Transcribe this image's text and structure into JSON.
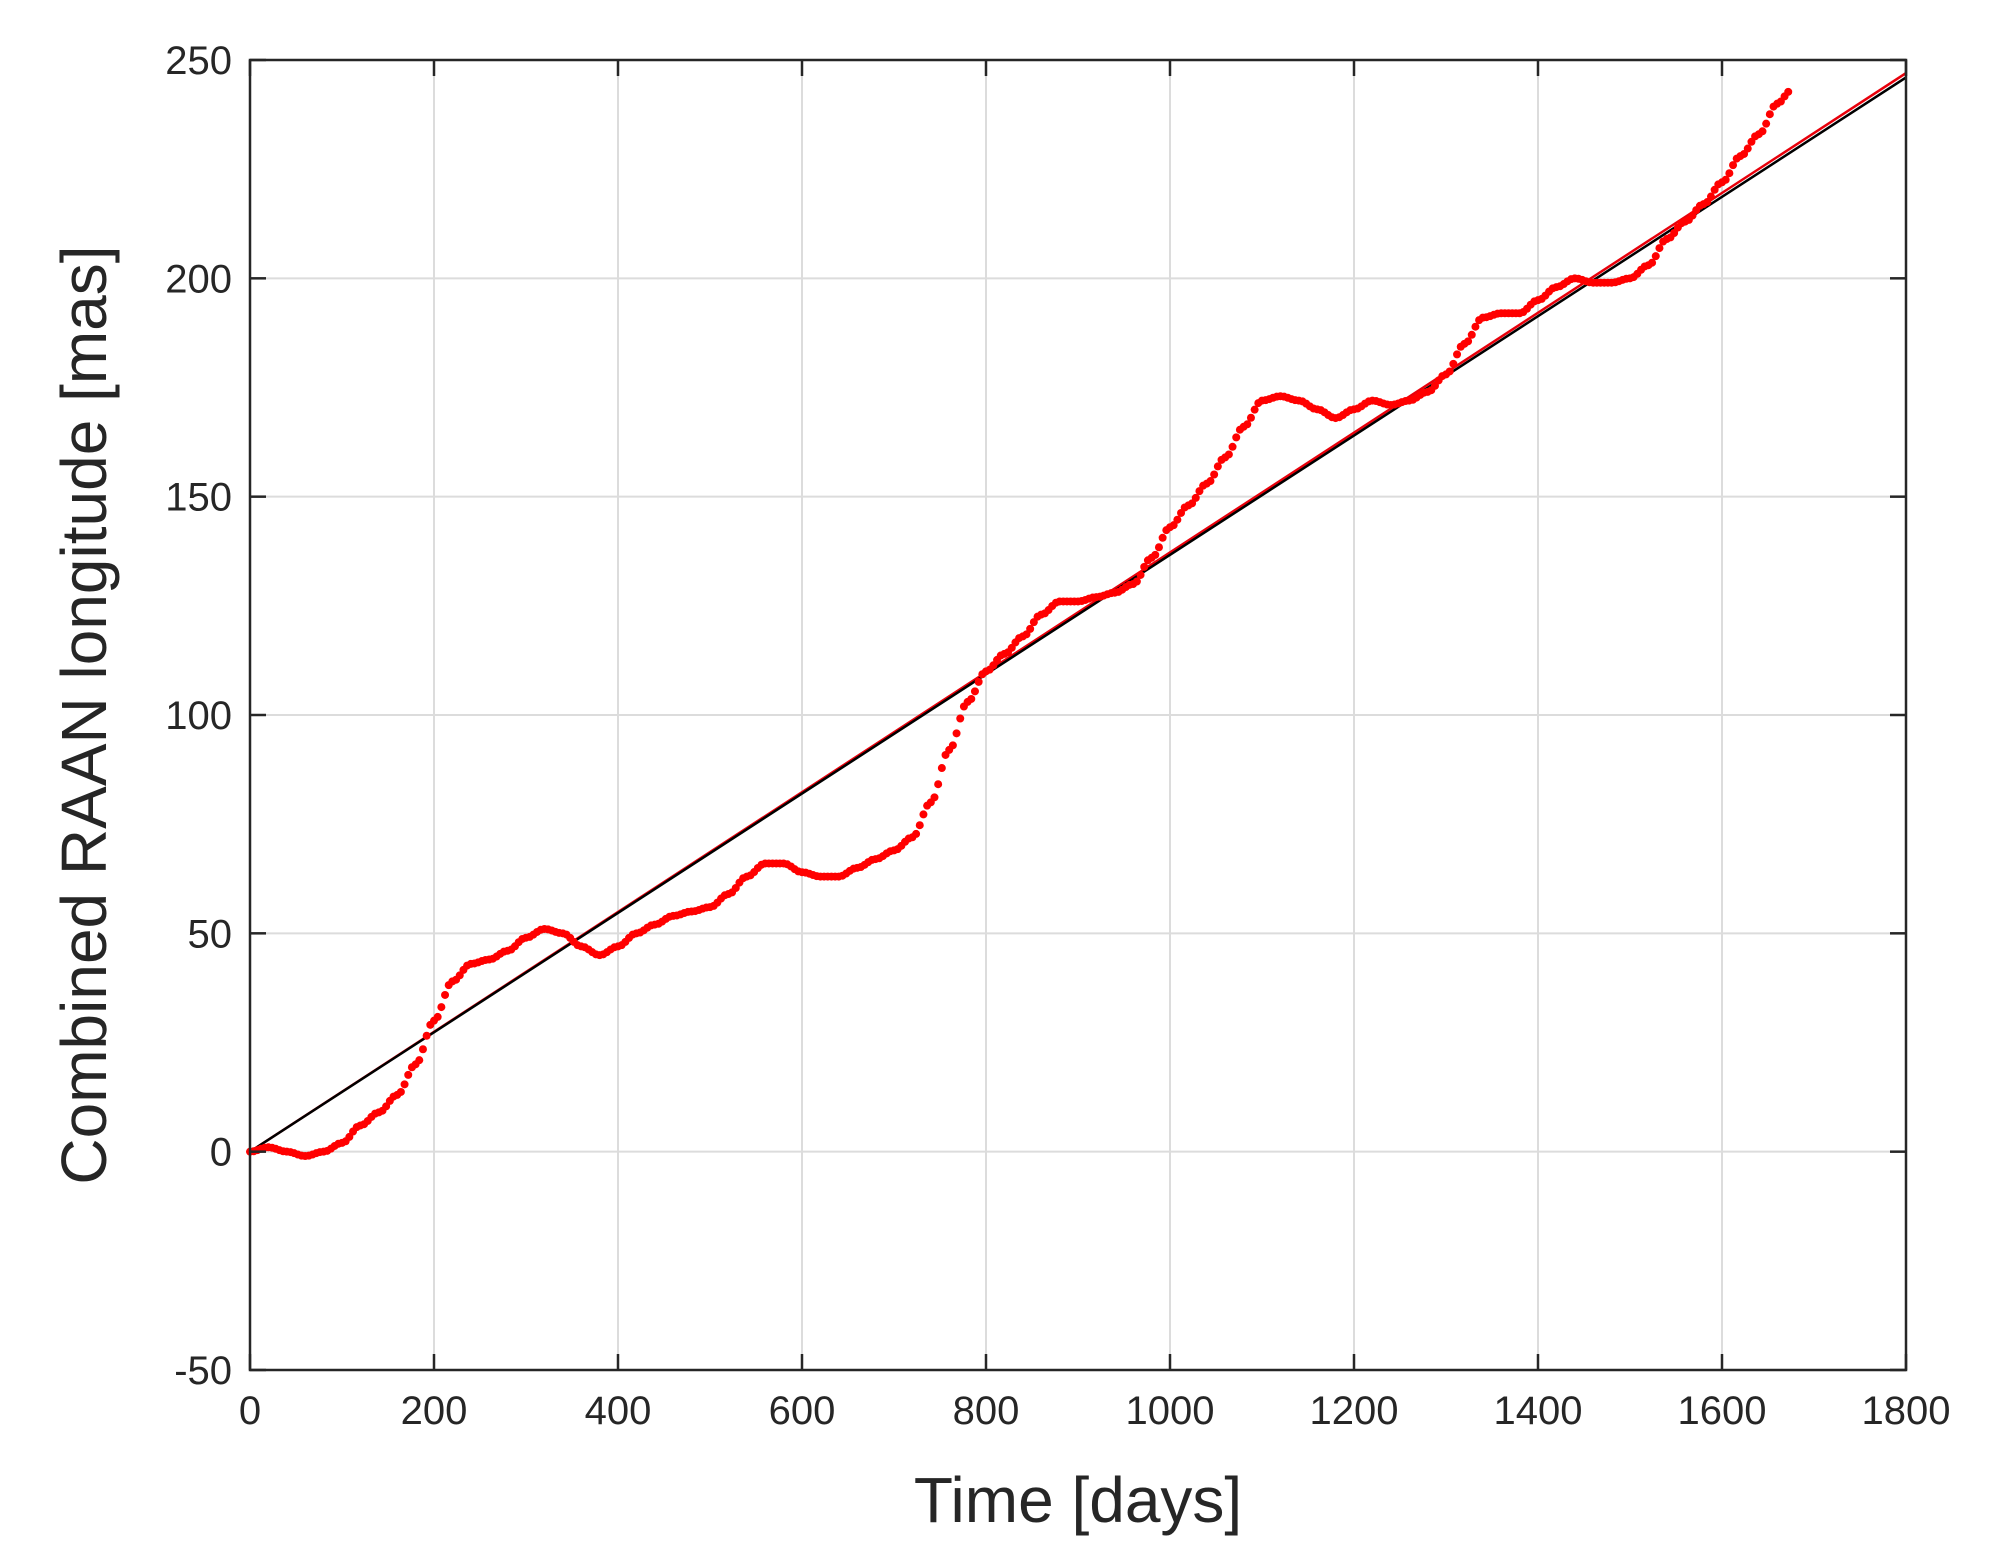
{
  "chart_data": {
    "type": "scatter",
    "title": "",
    "xlabel": "Time [days]",
    "ylabel": "Combined RAAN longitude [mas]",
    "xlim": [
      0,
      1800
    ],
    "ylim": [
      -50,
      250
    ],
    "xticks": [
      0,
      200,
      400,
      600,
      800,
      1000,
      1200,
      1400,
      1600,
      1800
    ],
    "xtick_labels": [
      "0",
      "200",
      "400",
      "600",
      "800",
      "1000",
      "1200",
      "1400",
      "1600",
      "1800"
    ],
    "yticks": [
      -50,
      0,
      50,
      100,
      150,
      200,
      250
    ],
    "ytick_labels": [
      "-50",
      "0",
      "50",
      "100",
      "150",
      "200",
      "250"
    ],
    "grid": true,
    "legend": "none",
    "colors": {
      "points": "#ff0000",
      "red_fit": "#e8000b",
      "black_fit": "#000000",
      "grid": "#dcdcdc",
      "axes": "#262626"
    },
    "curve_knots": [
      [
        0,
        0
      ],
      [
        20,
        1
      ],
      [
        40,
        0
      ],
      [
        60,
        -1
      ],
      [
        80,
        0
      ],
      [
        100,
        2
      ],
      [
        120,
        6
      ],
      [
        140,
        9
      ],
      [
        160,
        13
      ],
      [
        180,
        20
      ],
      [
        200,
        30
      ],
      [
        220,
        39
      ],
      [
        240,
        43
      ],
      [
        260,
        44
      ],
      [
        280,
        46
      ],
      [
        300,
        49
      ],
      [
        320,
        51
      ],
      [
        340,
        50
      ],
      [
        360,
        47
      ],
      [
        380,
        45
      ],
      [
        400,
        47
      ],
      [
        420,
        50
      ],
      [
        440,
        52
      ],
      [
        460,
        54
      ],
      [
        480,
        55
      ],
      [
        500,
        56
      ],
      [
        520,
        59
      ],
      [
        540,
        63
      ],
      [
        560,
        66
      ],
      [
        580,
        66
      ],
      [
        600,
        64
      ],
      [
        620,
        63
      ],
      [
        640,
        63
      ],
      [
        660,
        65
      ],
      [
        680,
        67
      ],
      [
        700,
        69
      ],
      [
        720,
        72
      ],
      [
        740,
        80
      ],
      [
        760,
        92
      ],
      [
        780,
        103
      ],
      [
        800,
        110
      ],
      [
        820,
        114
      ],
      [
        840,
        118
      ],
      [
        860,
        123
      ],
      [
        880,
        126
      ],
      [
        900,
        126
      ],
      [
        920,
        127
      ],
      [
        940,
        128
      ],
      [
        960,
        130
      ],
      [
        980,
        136
      ],
      [
        1000,
        143
      ],
      [
        1020,
        148
      ],
      [
        1040,
        153
      ],
      [
        1060,
        159
      ],
      [
        1080,
        166
      ],
      [
        1100,
        172
      ],
      [
        1120,
        173
      ],
      [
        1140,
        172
      ],
      [
        1160,
        170
      ],
      [
        1180,
        168
      ],
      [
        1200,
        170
      ],
      [
        1220,
        172
      ],
      [
        1240,
        171
      ],
      [
        1260,
        172
      ],
      [
        1280,
        174
      ],
      [
        1300,
        178
      ],
      [
        1320,
        185
      ],
      [
        1340,
        191
      ],
      [
        1360,
        192
      ],
      [
        1380,
        192
      ],
      [
        1400,
        195
      ],
      [
        1420,
        198
      ],
      [
        1440,
        200
      ],
      [
        1460,
        199
      ],
      [
        1480,
        199
      ],
      [
        1500,
        200
      ],
      [
        1520,
        203
      ],
      [
        1540,
        209
      ],
      [
        1560,
        213
      ],
      [
        1580,
        217
      ],
      [
        1600,
        222
      ],
      [
        1620,
        228
      ],
      [
        1640,
        233
      ],
      [
        1660,
        240
      ],
      [
        1675,
        243
      ]
    ],
    "point_spacing_days": 4,
    "fit_red": {
      "x": [
        0,
        1800
      ],
      "y": [
        0,
        247
      ]
    },
    "fit_black": {
      "x": [
        0,
        1800
      ],
      "y": [
        0,
        246
      ]
    }
  }
}
